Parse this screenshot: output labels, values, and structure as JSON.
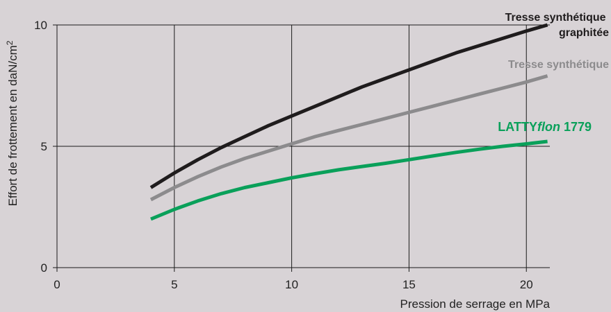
{
  "chart_data": {
    "type": "line",
    "xlabel": "Pression de serrage en MPa",
    "ylabel": {
      "text": "Effort de frottement en daN/cm",
      "sup": "2"
    },
    "xlim": [
      0,
      21
    ],
    "ylim": [
      0,
      10
    ],
    "x_ticks": [
      0,
      5,
      10,
      15,
      20
    ],
    "y_ticks": [
      0,
      5,
      10
    ],
    "grid": true,
    "series": [
      {
        "name": "Tresse synthétique graphitée",
        "label_lines": [
          "Tresse synthétique",
          "graphitée"
        ],
        "color": "#1f1c1d",
        "x": [
          4,
          5,
          6,
          7,
          8,
          9,
          10,
          11,
          12,
          13,
          14,
          15,
          16,
          17,
          18,
          19,
          20,
          20.9
        ],
        "y": [
          3.3,
          3.9,
          4.45,
          4.95,
          5.4,
          5.85,
          6.25,
          6.65,
          7.05,
          7.45,
          7.8,
          8.15,
          8.5,
          8.85,
          9.15,
          9.45,
          9.75,
          10.0
        ]
      },
      {
        "name": "Tresse synthétique",
        "label_lines": [
          "Tresse synthétique"
        ],
        "color": "#8c8b8d",
        "x": [
          4,
          5,
          6,
          7,
          8,
          9,
          10,
          11,
          12,
          13,
          14,
          15,
          16,
          17,
          18,
          19,
          20,
          20.9
        ],
        "y": [
          2.8,
          3.3,
          3.75,
          4.15,
          4.5,
          4.8,
          5.1,
          5.4,
          5.65,
          5.9,
          6.15,
          6.4,
          6.65,
          6.9,
          7.15,
          7.4,
          7.65,
          7.9
        ]
      },
      {
        "name": "LATTYflon 1779",
        "label_parts": [
          "LATTY",
          "flon",
          " 1779"
        ],
        "color": "#0aa05a",
        "x": [
          4,
          5,
          6,
          7,
          8,
          9,
          10,
          11,
          12,
          13,
          14,
          15,
          16,
          17,
          18,
          19,
          20,
          20.9
        ],
        "y": [
          2.0,
          2.4,
          2.75,
          3.05,
          3.3,
          3.5,
          3.7,
          3.87,
          4.03,
          4.17,
          4.3,
          4.45,
          4.6,
          4.75,
          4.88,
          5.0,
          5.1,
          5.2
        ]
      }
    ]
  }
}
